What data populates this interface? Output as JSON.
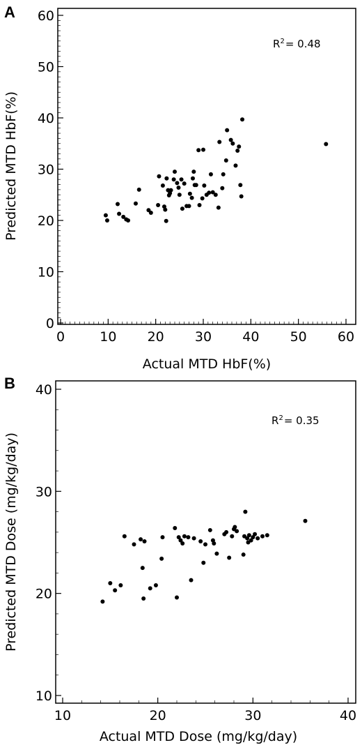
{
  "chart_data": [
    {
      "type": "scatter",
      "panel_label": "A",
      "xlabel": "Actual MTD HbF(%)",
      "ylabel": "Predicted MTD HbF(%)",
      "xlim": [
        0,
        60
      ],
      "ylim": [
        0,
        60
      ],
      "xticks": [
        "0",
        "10",
        "20",
        "30",
        "40",
        "50",
        "60"
      ],
      "yticks": [
        "0",
        "10",
        "20",
        "30",
        "40",
        "50",
        "60"
      ],
      "annotation": {
        "base": "R",
        "sup": "2",
        "rest": "= 0.48"
      },
      "grid": false,
      "points": [
        [
          9.5,
          21.0
        ],
        [
          9.8,
          20.0
        ],
        [
          12.0,
          23.2
        ],
        [
          12.3,
          21.3
        ],
        [
          13.2,
          20.7
        ],
        [
          13.8,
          20.2
        ],
        [
          14.2,
          20.0
        ],
        [
          15.8,
          23.3
        ],
        [
          16.5,
          26.0
        ],
        [
          18.5,
          22.0
        ],
        [
          19.0,
          21.5
        ],
        [
          20.5,
          23.0
        ],
        [
          20.7,
          28.6
        ],
        [
          21.5,
          26.8
        ],
        [
          21.8,
          22.7
        ],
        [
          22.0,
          22.1
        ],
        [
          22.2,
          19.9
        ],
        [
          22.3,
          28.2
        ],
        [
          22.6,
          25.9
        ],
        [
          22.8,
          24.9
        ],
        [
          23.0,
          25.3
        ],
        [
          23.2,
          25.9
        ],
        [
          23.8,
          28.0
        ],
        [
          24.0,
          29.5
        ],
        [
          24.5,
          27.3
        ],
        [
          24.8,
          26.4
        ],
        [
          25.0,
          25.0
        ],
        [
          25.4,
          28.0
        ],
        [
          25.6,
          22.3
        ],
        [
          26.0,
          27.2
        ],
        [
          26.5,
          22.8
        ],
        [
          27.0,
          22.8
        ],
        [
          27.2,
          25.2
        ],
        [
          27.6,
          24.4
        ],
        [
          27.8,
          28.2
        ],
        [
          28.0,
          29.5
        ],
        [
          28.2,
          26.9
        ],
        [
          28.5,
          26.9
        ],
        [
          29.0,
          33.7
        ],
        [
          29.2,
          23.0
        ],
        [
          29.8,
          24.3
        ],
        [
          30.0,
          33.8
        ],
        [
          30.2,
          26.8
        ],
        [
          30.7,
          25.0
        ],
        [
          31.2,
          25.4
        ],
        [
          31.6,
          29.0
        ],
        [
          32.0,
          25.5
        ],
        [
          32.6,
          25.0
        ],
        [
          33.2,
          22.5
        ],
        [
          33.4,
          35.3
        ],
        [
          34.0,
          26.3
        ],
        [
          34.2,
          29.0
        ],
        [
          34.8,
          31.7
        ],
        [
          35.0,
          37.6
        ],
        [
          35.8,
          35.7
        ],
        [
          36.2,
          35.0
        ],
        [
          36.8,
          30.7
        ],
        [
          37.2,
          33.6
        ],
        [
          37.5,
          34.4
        ],
        [
          37.8,
          26.9
        ],
        [
          38.0,
          24.7
        ],
        [
          38.2,
          39.7
        ],
        [
          55.8,
          34.9
        ]
      ]
    },
    {
      "type": "scatter",
      "panel_label": "B",
      "xlabel": "Actual MTD Dose (mg/kg/day)",
      "ylabel": "Predicted MTD Dose (mg/kg/day)",
      "xlim": [
        10,
        40
      ],
      "ylim": [
        10,
        40
      ],
      "xticks": [
        "10",
        "20",
        "30",
        "40"
      ],
      "yticks": [
        "10",
        "20",
        "30",
        "40"
      ],
      "annotation": {
        "base": "R",
        "sup": "2",
        "rest": "= 0.35"
      },
      "grid": false,
      "points": [
        [
          14.2,
          19.2
        ],
        [
          15.0,
          21.0
        ],
        [
          15.5,
          20.3
        ],
        [
          16.1,
          20.8
        ],
        [
          16.5,
          25.6
        ],
        [
          17.5,
          24.8
        ],
        [
          18.2,
          25.3
        ],
        [
          18.4,
          22.5
        ],
        [
          18.5,
          19.5
        ],
        [
          18.6,
          25.1
        ],
        [
          19.2,
          20.5
        ],
        [
          19.8,
          20.8
        ],
        [
          20.4,
          23.4
        ],
        [
          20.5,
          25.5
        ],
        [
          21.8,
          26.4
        ],
        [
          22.0,
          19.6
        ],
        [
          22.2,
          25.5
        ],
        [
          22.4,
          25.2
        ],
        [
          22.6,
          24.9
        ],
        [
          22.8,
          25.6
        ],
        [
          23.2,
          25.5
        ],
        [
          23.5,
          21.3
        ],
        [
          23.8,
          25.4
        ],
        [
          24.5,
          25.1
        ],
        [
          24.8,
          23.0
        ],
        [
          25.0,
          24.8
        ],
        [
          25.5,
          26.2
        ],
        [
          25.8,
          25.2
        ],
        [
          25.9,
          24.9
        ],
        [
          26.2,
          23.9
        ],
        [
          27.0,
          25.8
        ],
        [
          27.2,
          26.0
        ],
        [
          27.5,
          23.5
        ],
        [
          27.8,
          25.6
        ],
        [
          28.0,
          26.3
        ],
        [
          28.1,
          26.5
        ],
        [
          28.3,
          26.1
        ],
        [
          29.0,
          23.8
        ],
        [
          29.1,
          25.6
        ],
        [
          29.2,
          28.0
        ],
        [
          29.4,
          25.4
        ],
        [
          29.5,
          25.0
        ],
        [
          29.6,
          25.7
        ],
        [
          29.8,
          25.2
        ],
        [
          30.0,
          25.5
        ],
        [
          30.2,
          25.8
        ],
        [
          30.5,
          25.4
        ],
        [
          31.0,
          25.6
        ],
        [
          31.5,
          25.7
        ],
        [
          35.5,
          27.1
        ]
      ]
    }
  ]
}
